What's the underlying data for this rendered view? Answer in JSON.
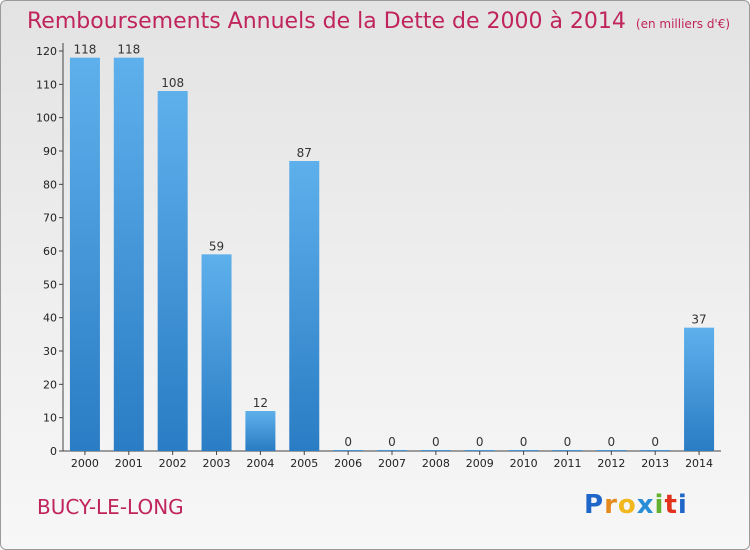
{
  "title": {
    "main": "Remboursements Annuels de la Dette de 2000 à 2014",
    "unit": "(en milliers d'€)"
  },
  "commune": "BUCY-LE-LONG",
  "logo": {
    "letters": [
      "P",
      "r",
      "o",
      "x",
      "i",
      "t",
      "i"
    ],
    "colors": [
      "#1f66c9",
      "#e58a1f",
      "#f0b81c",
      "#2a8ed6",
      "#62b22f",
      "#e2311d",
      "#1f66c9"
    ]
  },
  "colors": {
    "bar": "#3d93dc",
    "title": "#c0245c"
  },
  "chart_data": {
    "type": "bar",
    "categories": [
      "2000",
      "2001",
      "2002",
      "2003",
      "2004",
      "2005",
      "2006",
      "2007",
      "2008",
      "2009",
      "2010",
      "2011",
      "2012",
      "2013",
      "2014"
    ],
    "values": [
      118,
      118,
      108,
      59,
      12,
      87,
      0,
      0,
      0,
      0,
      0,
      0,
      0,
      0,
      37
    ],
    "value_labels": [
      "118",
      "118",
      "108",
      "59",
      "12",
      "87",
      "0",
      "0",
      "0",
      "0",
      "0",
      "0",
      "0",
      "0",
      "37"
    ],
    "y_ticks": [
      "0",
      "10",
      "20",
      "30",
      "40",
      "50",
      "60",
      "70",
      "80",
      "90",
      "100",
      "110",
      "120"
    ],
    "ylim": [
      0,
      120
    ],
    "grid": false,
    "legend": "none"
  }
}
